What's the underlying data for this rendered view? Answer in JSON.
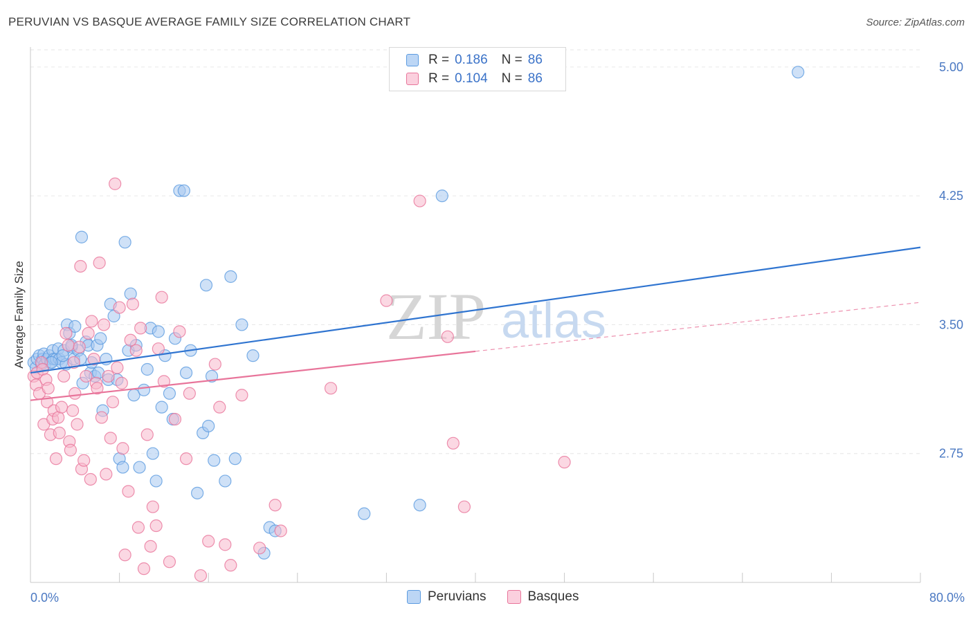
{
  "title": "PERUVIAN VS BASQUE AVERAGE FAMILY SIZE CORRELATION CHART",
  "source": "Source: ZipAtlas.com",
  "watermark": {
    "zip": "ZIP",
    "atlas": "atlas"
  },
  "legend": {
    "rows": [
      {
        "r_label": "R =",
        "r_value": "0.186",
        "n_label": "N =",
        "n_value": "86",
        "color": "#a8c8f0"
      },
      {
        "r_label": "R =",
        "r_value": "0.104",
        "n_label": "N =",
        "n_value": "86",
        "color": "#f7b8cc"
      }
    ]
  },
  "bottom_legend": {
    "series1": "Peruvians",
    "series2": "Basques"
  },
  "chart_data": {
    "type": "scatter",
    "title": "PERUVIAN VS BASQUE AVERAGE FAMILY SIZE CORRELATION CHART",
    "xlabel": "",
    "ylabel": "Average Family Size",
    "xlim": [
      0,
      80
    ],
    "ylim": [
      2.0,
      5.1
    ],
    "x_tick_labels": [
      "0.0%",
      "80.0%"
    ],
    "y_ticks": [
      2.75,
      3.5,
      4.25,
      5.0
    ],
    "y_tick_labels": [
      "2.75",
      "3.50",
      "4.25",
      "5.00"
    ],
    "grid": true,
    "legend_position": "top-center",
    "series": [
      {
        "name": "Peruvians",
        "color": "#5b9be0",
        "fill": "#a8c8f0",
        "trend": {
          "x0": 0,
          "y0": 3.22,
          "x1": 80,
          "y1": 3.95,
          "dashed_from": null
        },
        "points": [
          [
            0.3,
            3.28
          ],
          [
            0.5,
            3.25
          ],
          [
            0.6,
            3.3
          ],
          [
            0.8,
            3.32
          ],
          [
            1.0,
            3.27
          ],
          [
            1.1,
            3.3
          ],
          [
            1.2,
            3.33
          ],
          [
            1.3,
            3.27
          ],
          [
            1.5,
            3.3
          ],
          [
            1.7,
            3.32
          ],
          [
            1.8,
            3.28
          ],
          [
            2.0,
            3.35
          ],
          [
            2.1,
            3.3
          ],
          [
            2.3,
            3.3
          ],
          [
            2.5,
            3.36
          ],
          [
            2.6,
            3.3
          ],
          [
            2.8,
            3.28
          ],
          [
            3.0,
            3.35
          ],
          [
            3.2,
            3.27
          ],
          [
            3.3,
            3.5
          ],
          [
            3.5,
            3.45
          ],
          [
            3.7,
            3.37
          ],
          [
            3.9,
            3.3
          ],
          [
            4.0,
            3.49
          ],
          [
            4.3,
            3.35
          ],
          [
            4.5,
            3.3
          ],
          [
            4.7,
            3.16
          ],
          [
            5.0,
            3.4
          ],
          [
            5.2,
            3.38
          ],
          [
            5.4,
            3.22
          ],
          [
            5.5,
            3.28
          ],
          [
            5.8,
            3.2
          ],
          [
            6.0,
            3.38
          ],
          [
            6.1,
            3.22
          ],
          [
            6.3,
            3.42
          ],
          [
            6.5,
            3.0
          ],
          [
            6.8,
            3.3
          ],
          [
            7.0,
            3.18
          ],
          [
            7.2,
            3.62
          ],
          [
            7.5,
            3.55
          ],
          [
            7.8,
            3.18
          ],
          [
            8.0,
            2.72
          ],
          [
            8.3,
            2.67
          ],
          [
            8.5,
            3.98
          ],
          [
            8.8,
            3.35
          ],
          [
            9.0,
            3.68
          ],
          [
            9.3,
            3.09
          ],
          [
            9.5,
            3.38
          ],
          [
            9.8,
            2.67
          ],
          [
            10.2,
            3.12
          ],
          [
            10.5,
            3.24
          ],
          [
            10.8,
            3.48
          ],
          [
            11.0,
            2.75
          ],
          [
            11.3,
            2.59
          ],
          [
            11.5,
            3.46
          ],
          [
            11.8,
            3.02
          ],
          [
            12.1,
            3.32
          ],
          [
            12.5,
            3.1
          ],
          [
            12.8,
            2.95
          ],
          [
            13.0,
            3.42
          ],
          [
            13.4,
            4.28
          ],
          [
            13.8,
            4.28
          ],
          [
            14.0,
            3.22
          ],
          [
            14.4,
            3.35
          ],
          [
            15.0,
            2.52
          ],
          [
            15.5,
            2.87
          ],
          [
            15.8,
            3.73
          ],
          [
            16.0,
            2.91
          ],
          [
            16.3,
            3.2
          ],
          [
            16.5,
            2.71
          ],
          [
            17.5,
            2.59
          ],
          [
            18.0,
            3.78
          ],
          [
            18.4,
            2.72
          ],
          [
            19.0,
            3.5
          ],
          [
            20.0,
            3.32
          ],
          [
            21.0,
            2.17
          ],
          [
            21.5,
            2.32
          ],
          [
            22.0,
            2.3
          ],
          [
            30.0,
            2.4
          ],
          [
            35.0,
            2.45
          ],
          [
            37.0,
            4.25
          ],
          [
            69.0,
            4.97
          ],
          [
            4.6,
            4.01
          ],
          [
            3.7,
            3.38
          ],
          [
            1.9,
            3.28
          ],
          [
            2.9,
            3.32
          ]
        ]
      },
      {
        "name": "Basques",
        "color": "#e8749a",
        "fill": "#f7b8cc",
        "trend": {
          "x0": 0,
          "y0": 3.06,
          "x1": 80,
          "y1": 3.63,
          "dashed_from": 40
        },
        "points": [
          [
            0.3,
            3.2
          ],
          [
            0.5,
            3.15
          ],
          [
            0.6,
            3.22
          ],
          [
            0.8,
            3.1
          ],
          [
            1.0,
            3.28
          ],
          [
            1.1,
            3.24
          ],
          [
            1.2,
            2.92
          ],
          [
            1.4,
            3.18
          ],
          [
            1.5,
            3.05
          ],
          [
            1.6,
            3.13
          ],
          [
            1.8,
            2.86
          ],
          [
            2.0,
            2.95
          ],
          [
            2.1,
            3.0
          ],
          [
            2.3,
            2.72
          ],
          [
            2.5,
            2.96
          ],
          [
            2.6,
            2.87
          ],
          [
            2.8,
            3.02
          ],
          [
            3.0,
            3.2
          ],
          [
            3.2,
            3.45
          ],
          [
            3.4,
            3.38
          ],
          [
            3.5,
            2.82
          ],
          [
            3.6,
            2.77
          ],
          [
            3.8,
            3.0
          ],
          [
            3.9,
            3.28
          ],
          [
            4.0,
            3.1
          ],
          [
            4.2,
            2.92
          ],
          [
            4.4,
            3.37
          ],
          [
            4.5,
            3.84
          ],
          [
            4.6,
            2.66
          ],
          [
            4.8,
            2.71
          ],
          [
            5.0,
            3.2
          ],
          [
            5.2,
            3.45
          ],
          [
            5.4,
            2.6
          ],
          [
            5.5,
            3.52
          ],
          [
            5.7,
            3.3
          ],
          [
            5.9,
            3.16
          ],
          [
            6.0,
            3.13
          ],
          [
            6.2,
            3.86
          ],
          [
            6.4,
            2.96
          ],
          [
            6.6,
            3.5
          ],
          [
            6.8,
            2.63
          ],
          [
            7.0,
            3.2
          ],
          [
            7.2,
            2.84
          ],
          [
            7.4,
            3.05
          ],
          [
            7.6,
            4.32
          ],
          [
            7.8,
            3.25
          ],
          [
            8.0,
            3.6
          ],
          [
            8.2,
            3.16
          ],
          [
            8.3,
            2.78
          ],
          [
            8.5,
            2.16
          ],
          [
            8.8,
            2.53
          ],
          [
            9.0,
            3.41
          ],
          [
            9.2,
            3.62
          ],
          [
            9.5,
            3.35
          ],
          [
            9.7,
            2.32
          ],
          [
            9.9,
            3.48
          ],
          [
            10.2,
            2.08
          ],
          [
            10.5,
            2.86
          ],
          [
            10.8,
            2.21
          ],
          [
            11.0,
            2.44
          ],
          [
            11.3,
            2.33
          ],
          [
            11.5,
            3.36
          ],
          [
            11.8,
            3.66
          ],
          [
            12.0,
            3.17
          ],
          [
            12.5,
            2.12
          ],
          [
            13.0,
            2.95
          ],
          [
            13.4,
            3.46
          ],
          [
            14.0,
            2.72
          ],
          [
            14.3,
            3.1
          ],
          [
            15.3,
            2.04
          ],
          [
            16.0,
            2.24
          ],
          [
            16.6,
            3.27
          ],
          [
            17.0,
            3.02
          ],
          [
            17.5,
            2.22
          ],
          [
            18.0,
            2.1
          ],
          [
            19.0,
            3.09
          ],
          [
            20.6,
            2.2
          ],
          [
            22.0,
            2.45
          ],
          [
            22.5,
            2.3
          ],
          [
            27.0,
            3.13
          ],
          [
            32.0,
            3.64
          ],
          [
            35.0,
            4.22
          ],
          [
            37.5,
            3.43
          ],
          [
            38.0,
            2.81
          ],
          [
            39.0,
            2.44
          ],
          [
            48.0,
            2.7
          ]
        ]
      }
    ]
  }
}
